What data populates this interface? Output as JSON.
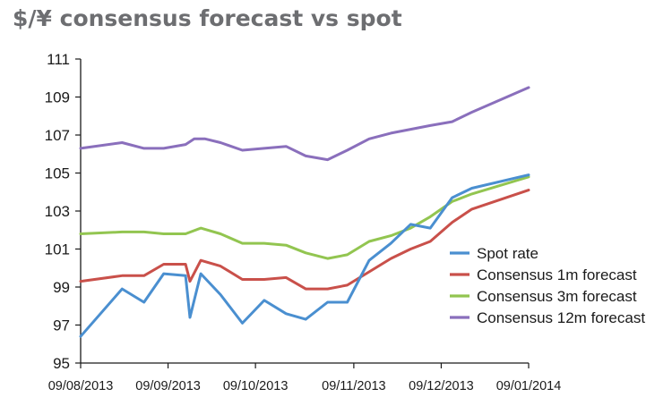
{
  "chart_data": {
    "type": "line",
    "title": "$/¥ consensus forecast vs spot",
    "xlabel": "",
    "ylabel": "",
    "ylim": [
      95,
      111
    ],
    "yticks": [
      95,
      97,
      99,
      101,
      103,
      105,
      107,
      109,
      111
    ],
    "xlim": [
      0,
      20.5
    ],
    "xticks": [
      {
        "x": 0,
        "label": "09/08/2013"
      },
      {
        "x": 4,
        "label": "09/09/2013"
      },
      {
        "x": 8,
        "label": "09/10/2013"
      },
      {
        "x": 12.5,
        "label": "09/11/2013"
      },
      {
        "x": 16.5,
        "label": "09/12/2013"
      },
      {
        "x": 20.5,
        "label": "09/01/2014"
      }
    ],
    "grid": false,
    "legend_position": "right",
    "series": [
      {
        "name": "Spot rate",
        "color": "#4a8fd0",
        "x": [
          0,
          1.9,
          2.9,
          3.8,
          4.8,
          5.0,
          5.5,
          6.4,
          7.4,
          8.4,
          9.4,
          10.3,
          11.3,
          12.2,
          13.2,
          14.2,
          15.1,
          16.0,
          17.0,
          17.9,
          20.5
        ],
        "values": [
          96.4,
          98.9,
          98.2,
          99.7,
          99.6,
          97.4,
          99.7,
          98.6,
          97.1,
          98.3,
          97.6,
          97.3,
          98.2,
          98.2,
          100.4,
          101.3,
          102.3,
          102.1,
          103.7,
          104.2,
          104.9
        ]
      },
      {
        "name": "Consensus 1m forecast",
        "color": "#c9504a",
        "x": [
          0,
          1.9,
          2.9,
          3.8,
          4.8,
          5.0,
          5.5,
          6.4,
          7.4,
          8.4,
          9.4,
          10.3,
          11.3,
          12.2,
          13.2,
          14.2,
          15.1,
          16.0,
          17.0,
          17.9,
          20.5
        ],
        "values": [
          99.3,
          99.6,
          99.6,
          100.2,
          100.2,
          99.3,
          100.4,
          100.1,
          99.4,
          99.4,
          99.5,
          98.9,
          98.9,
          99.1,
          99.8,
          100.5,
          101.0,
          101.4,
          102.4,
          103.1,
          104.1
        ]
      },
      {
        "name": "Consensus 3m forecast",
        "color": "#92c550",
        "x": [
          0,
          1.9,
          2.9,
          3.8,
          4.8,
          5.5,
          6.4,
          7.4,
          8.4,
          9.4,
          10.3,
          11.3,
          12.2,
          13.2,
          14.2,
          15.1,
          16.0,
          17.0,
          17.9,
          20.5
        ],
        "values": [
          101.8,
          101.9,
          101.9,
          101.8,
          101.8,
          102.1,
          101.8,
          101.3,
          101.3,
          101.2,
          100.8,
          100.5,
          100.7,
          101.4,
          101.7,
          102.1,
          102.7,
          103.5,
          103.9,
          104.8
        ]
      },
      {
        "name": "Consensus 12m forecast",
        "color": "#8a6fbc",
        "x": [
          0,
          1.9,
          2.9,
          3.8,
          4.8,
          5.2,
          5.7,
          6.4,
          7.4,
          8.4,
          9.4,
          10.3,
          11.3,
          12.2,
          13.2,
          14.2,
          15.1,
          16.0,
          17.0,
          17.9,
          20.5
        ],
        "values": [
          106.3,
          106.6,
          106.3,
          106.3,
          106.5,
          106.8,
          106.8,
          106.6,
          106.2,
          106.3,
          106.4,
          105.9,
          105.7,
          106.2,
          106.8,
          107.1,
          107.3,
          107.5,
          107.7,
          108.2,
          109.5
        ]
      }
    ]
  }
}
